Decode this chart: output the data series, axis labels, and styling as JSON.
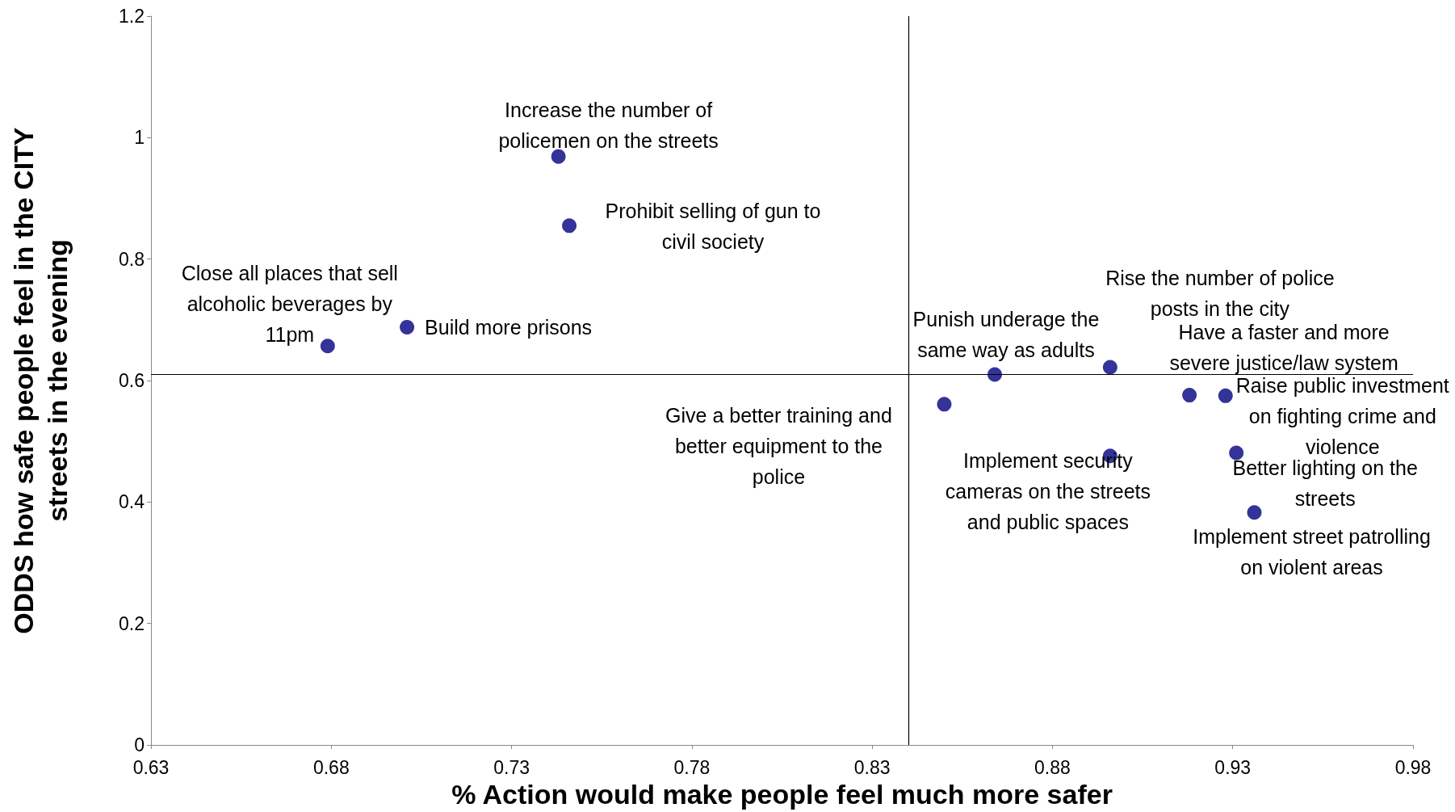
{
  "chart_data": {
    "type": "scatter",
    "xlabel": "% Action would make people feel much more safer",
    "ylabel": "ODDS how safe people feel in the CITY\nstreets in the evening",
    "x": [
      0.679,
      0.701,
      0.743,
      0.746,
      0.85,
      0.864,
      0.896,
      0.896,
      0.918,
      0.928,
      0.931,
      0.936
    ],
    "series": [
      {
        "color": "#000080",
        "values": [
          0.657,
          0.688,
          0.969,
          0.855,
          0.561,
          0.61,
          0.622,
          0.476,
          0.576,
          0.575,
          0.481,
          0.383
        ]
      }
    ],
    "xlim": [
      0.63,
      0.98
    ],
    "xticks": [
      0.63,
      0.68,
      0.73,
      0.78,
      0.83,
      0.88,
      0.93,
      0.98
    ],
    "ylim": [
      0,
      1.2
    ],
    "yticks": [
      0,
      0.2,
      0.4,
      0.6,
      0.8,
      1,
      1.2
    ],
    "grid": false,
    "marker": "circle",
    "ref_lines": [
      {
        "axis": "x",
        "value": 0.84,
        "color": "#000000"
      },
      {
        "axis": "y",
        "value": 0.612,
        "color": "#000000"
      }
    ],
    "annotations": [
      {
        "text": "Close all places that sell\nalcoholic beverages by\n11pm",
        "x": 0.679,
        "y": 0.657
      },
      {
        "text": "Build more prisons",
        "x": 0.701,
        "y": 0.688
      },
      {
        "text": "Increase the number of\npolicemen on the streets",
        "x": 0.743,
        "y": 0.969
      },
      {
        "text": "Prohibit selling of gun to\ncivil society",
        "x": 0.746,
        "y": 0.855
      },
      {
        "text": "Give a better training and\nbetter equipment to the\npolice",
        "x": 0.85,
        "y": 0.561
      },
      {
        "text": "Punish underage the\nsame way as adults",
        "x": 0.864,
        "y": 0.61
      },
      {
        "text": "Rise the number of police\nposts in the city",
        "x": 0.896,
        "y": 0.622
      },
      {
        "text": "Implement security\ncameras on the streets\nand public spaces",
        "x": 0.896,
        "y": 0.476
      },
      {
        "text": "Have a faster and more\nsevere justice/law system",
        "x": 0.918,
        "y": 0.576
      },
      {
        "text": "Raise public investment\non fighting crime and\nviolence",
        "x": 0.928,
        "y": 0.575
      },
      {
        "text": "Better lighting on the\nstreets",
        "x": 0.931,
        "y": 0.481
      },
      {
        "text": "Implement street patrolling\non violent areas",
        "x": 0.936,
        "y": 0.383
      }
    ]
  }
}
